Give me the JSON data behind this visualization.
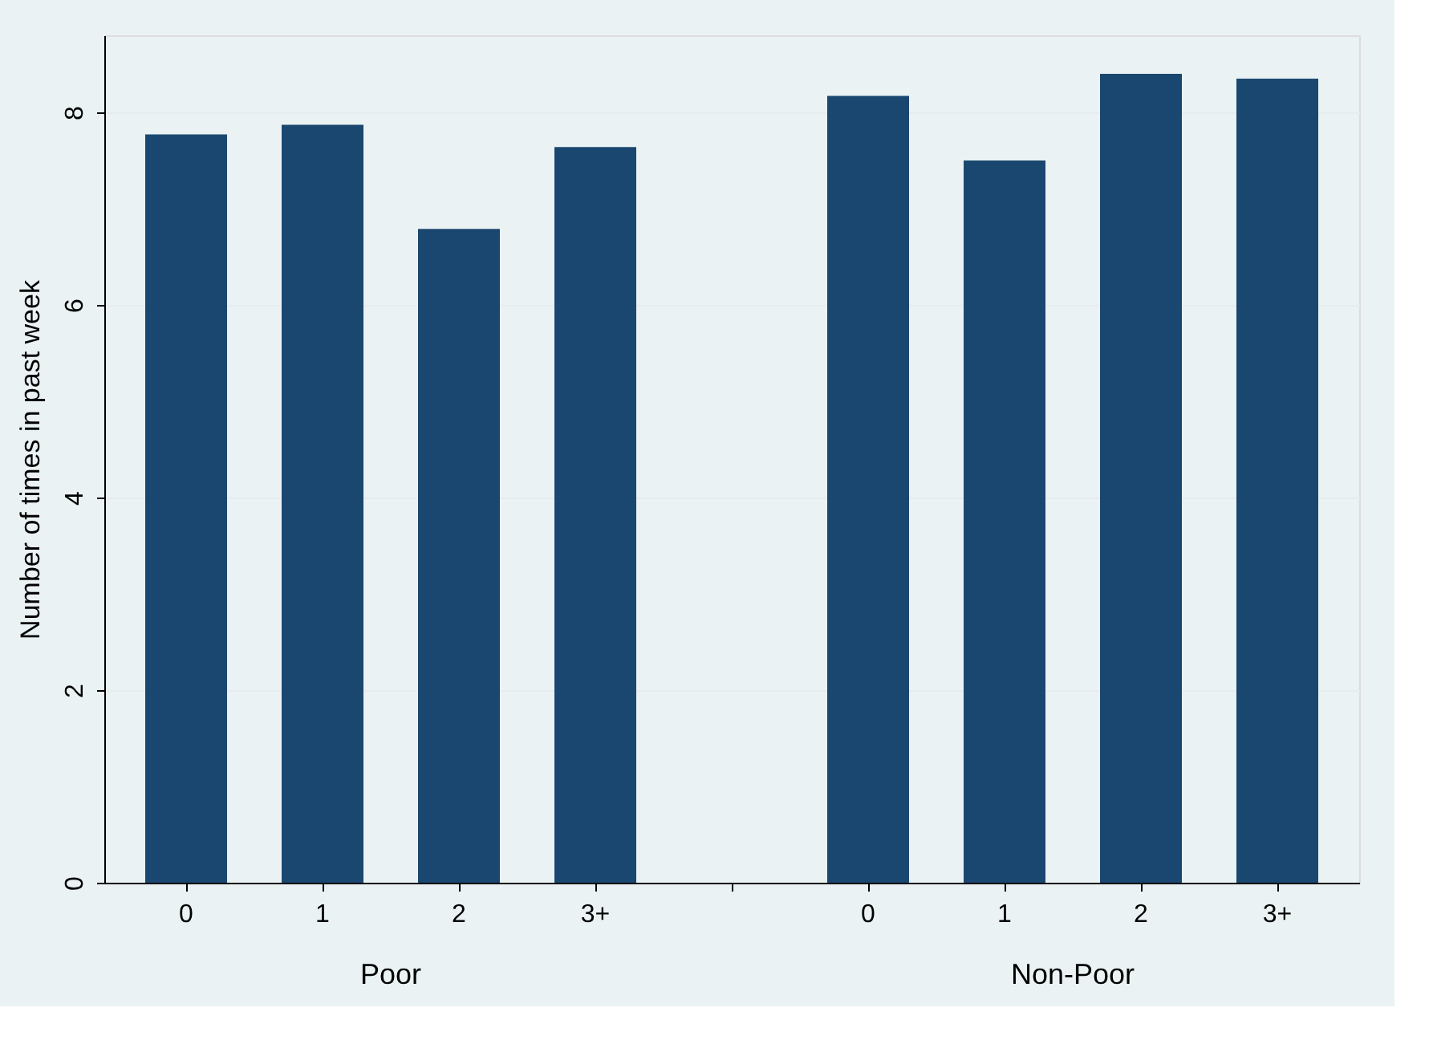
{
  "chart_data": {
    "type": "bar",
    "ylabel": "Number of times in past week",
    "categories": [
      "0",
      "1",
      "2",
      "3+",
      null,
      "0",
      "1",
      "2",
      "3+"
    ],
    "values": [
      7.77,
      7.87,
      6.79,
      7.64,
      null,
      8.17,
      7.5,
      8.4,
      8.35
    ],
    "color": "#1a476f",
    "ylim": [
      0,
      8.8
    ],
    "yticks": [
      0,
      2,
      4,
      6,
      8
    ],
    "grid": "y",
    "annotations": [
      "Poor",
      "Non-Poor"
    ]
  }
}
